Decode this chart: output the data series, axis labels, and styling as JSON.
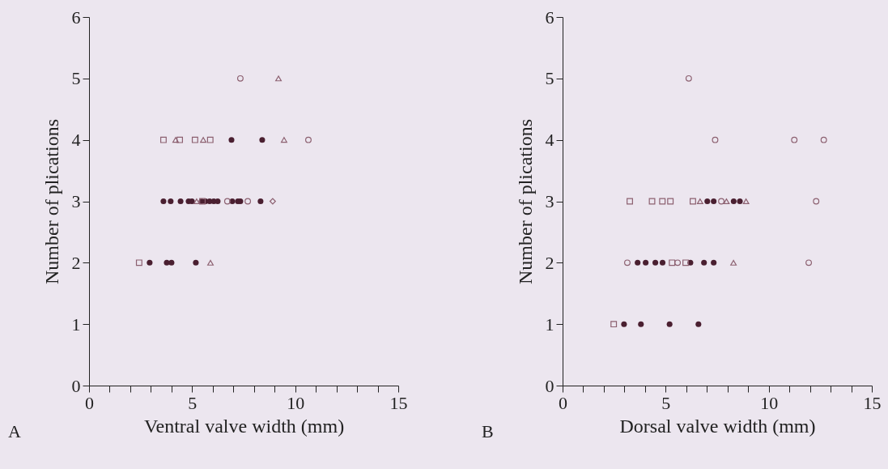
{
  "chart_data": [
    {
      "type": "scatter",
      "xlabel": "Ventral valve width (mm)",
      "ylabel": "Number of plications",
      "annotations": [
        "A"
      ],
      "xlim": [
        0,
        15
      ],
      "ylim": [
        0,
        6
      ],
      "xticks": [
        0,
        {
          "value": 1,
          "label": null
        },
        {
          "value": 2,
          "label": null
        },
        {
          "value": 3,
          "label": null
        },
        {
          "value": 4,
          "label": null
        },
        5,
        {
          "value": 6,
          "label": null
        },
        {
          "value": 7,
          "label": null
        },
        {
          "value": 8,
          "label": null
        },
        {
          "value": 9,
          "label": null
        },
        10,
        {
          "value": 11,
          "label": null
        },
        {
          "value": 12,
          "label": null
        },
        {
          "value": 13,
          "label": null
        },
        {
          "value": 14,
          "label": null
        },
        15
      ],
      "yticks": [
        0,
        1,
        2,
        3,
        4,
        5,
        6
      ],
      "grid": false,
      "series": [
        {
          "marker": "circle",
          "color": "#4a1f30",
          "x": [
            6.91,
            8.4,
            3.61,
            3.96,
            4.44,
            4.83,
            4.99,
            5.46,
            5.65,
            5.85,
            6.05,
            6.24,
            6.95,
            7.22,
            7.34,
            8.32,
            2.94,
            3.77,
            4.0,
            5.18
          ],
          "values": [
            4,
            4,
            3,
            3,
            3,
            3,
            3,
            3,
            3,
            3,
            3,
            3,
            3,
            3,
            3,
            3,
            2,
            2,
            2,
            2
          ]
        },
        {
          "marker": "circle",
          "color": "#8c6070",
          "x": [
            7.34,
            10.64,
            6.71,
            7.7
          ],
          "values": [
            5,
            4,
            3,
            3
          ]
        },
        {
          "marker": "square",
          "color": "#8c6070",
          "x": [
            3.61,
            4.4,
            5.14,
            5.88,
            5.5,
            2.43
          ],
          "values": [
            4,
            4,
            4,
            4,
            3,
            2
          ]
        },
        {
          "marker": "triangle",
          "color": "#8c6070",
          "x": [
            9.19,
            9.46,
            5.22,
            4.2,
            5.54,
            5.89
          ],
          "values": [
            5,
            4,
            3,
            4,
            4,
            2
          ]
        },
        {
          "marker": "diamond",
          "color": "#8c6070",
          "x": [
            8.91
          ],
          "values": [
            3
          ]
        }
      ]
    },
    {
      "type": "scatter",
      "xlabel": "Dorsal valve width (mm)",
      "ylabel": "Number of plications",
      "annotations": [
        "B"
      ],
      "xlim": [
        0,
        15
      ],
      "ylim": [
        0,
        6
      ],
      "xticks": [
        0,
        {
          "value": 1,
          "label": null
        },
        {
          "value": 2,
          "label": null
        },
        {
          "value": 3,
          "label": null
        },
        {
          "value": 4,
          "label": null
        },
        5,
        {
          "value": 6,
          "label": null
        },
        {
          "value": 7,
          "label": null
        },
        {
          "value": 8,
          "label": null
        },
        {
          "value": 9,
          "label": null
        },
        10,
        {
          "value": 11,
          "label": null
        },
        {
          "value": 12,
          "label": null
        },
        {
          "value": 13,
          "label": null
        },
        {
          "value": 14,
          "label": null
        },
        15
      ],
      "yticks": [
        0,
        1,
        2,
        3,
        4,
        5,
        6
      ],
      "grid": false,
      "series": [
        {
          "marker": "circle",
          "color": "#4a1f30",
          "x": [
            7.02,
            7.33,
            8.3,
            8.6,
            3.64,
            4.03,
            4.5,
            4.85,
            6.2,
            6.86,
            7.33,
            2.98,
            3.8,
            5.19,
            6.59
          ],
          "values": [
            3,
            3,
            3,
            3,
            2,
            2,
            2,
            2,
            2,
            2,
            2,
            1,
            1,
            1,
            1
          ]
        },
        {
          "marker": "circle",
          "color": "#8c6070",
          "x": [
            6.12,
            7.4,
            11.24,
            12.67,
            7.7,
            12.3,
            3.14,
            5.58,
            11.94
          ],
          "values": [
            5,
            4,
            4,
            4,
            3,
            3,
            2,
            2,
            2
          ]
        },
        {
          "marker": "square",
          "color": "#8c6070",
          "x": [
            3.26,
            4.34,
            4.84,
            5.23,
            6.32,
            5.31,
            5.97,
            2.48
          ],
          "values": [
            3,
            3,
            3,
            3,
            3,
            2,
            2,
            1
          ]
        },
        {
          "marker": "triangle",
          "color": "#8c6070",
          "x": [
            6.67,
            7.95,
            8.9,
            8.29
          ],
          "values": [
            3,
            3,
            3,
            2
          ]
        }
      ]
    }
  ]
}
